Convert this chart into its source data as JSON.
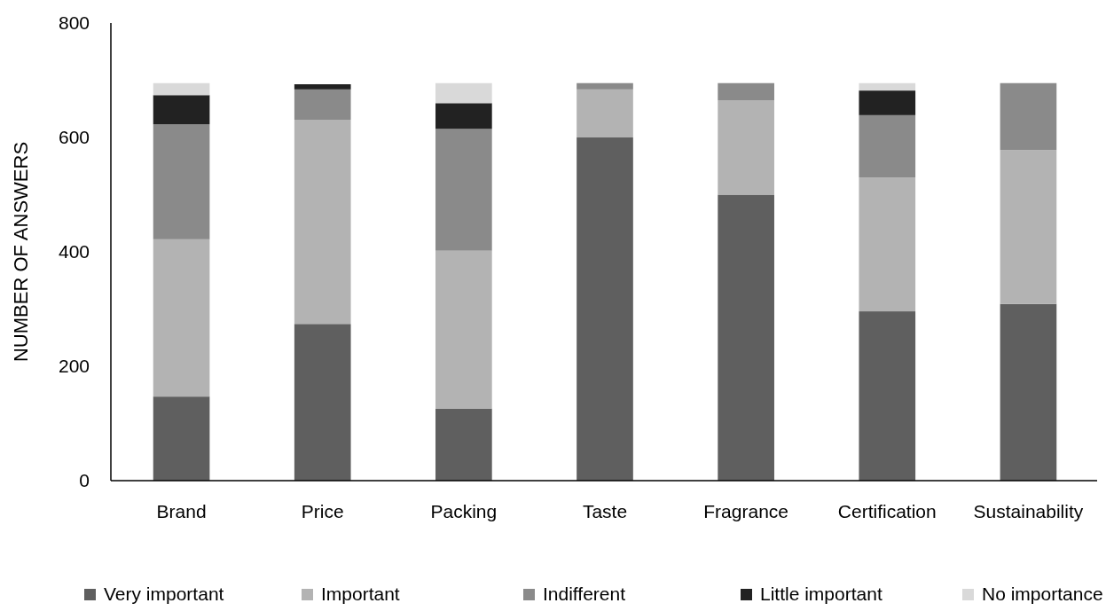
{
  "chart_data": {
    "type": "bar",
    "stacked": true,
    "ylabel": "NUMBER OF ANSWERS",
    "categories": [
      "Brand",
      "Price",
      "Packing",
      "Taste",
      "Fragrance",
      "Certification",
      "Sustainability"
    ],
    "series": [
      {
        "name": "Very important",
        "color": "#5f5f5f",
        "values": [
          147,
          274,
          126,
          600,
          500,
          296,
          309
        ]
      },
      {
        "name": "Important",
        "color": "#b3b3b3",
        "values": [
          275,
          357,
          276,
          84,
          165,
          234,
          269
        ]
      },
      {
        "name": "Indifferent",
        "color": "#8a8a8a",
        "values": [
          201,
          53,
          213,
          11,
          30,
          109,
          117
        ]
      },
      {
        "name": "Little important",
        "color": "#222222",
        "values": [
          51,
          9,
          45,
          null,
          null,
          43,
          null
        ]
      },
      {
        "name": "No importance",
        "color": "#d9d9d9",
        "values": [
          21,
          null,
          35,
          null,
          null,
          13,
          null
        ]
      }
    ],
    "ylim": [
      0,
      800
    ],
    "yticks": [
      0,
      200,
      400,
      600,
      800
    ],
    "grid": false,
    "legend": "bottom"
  }
}
